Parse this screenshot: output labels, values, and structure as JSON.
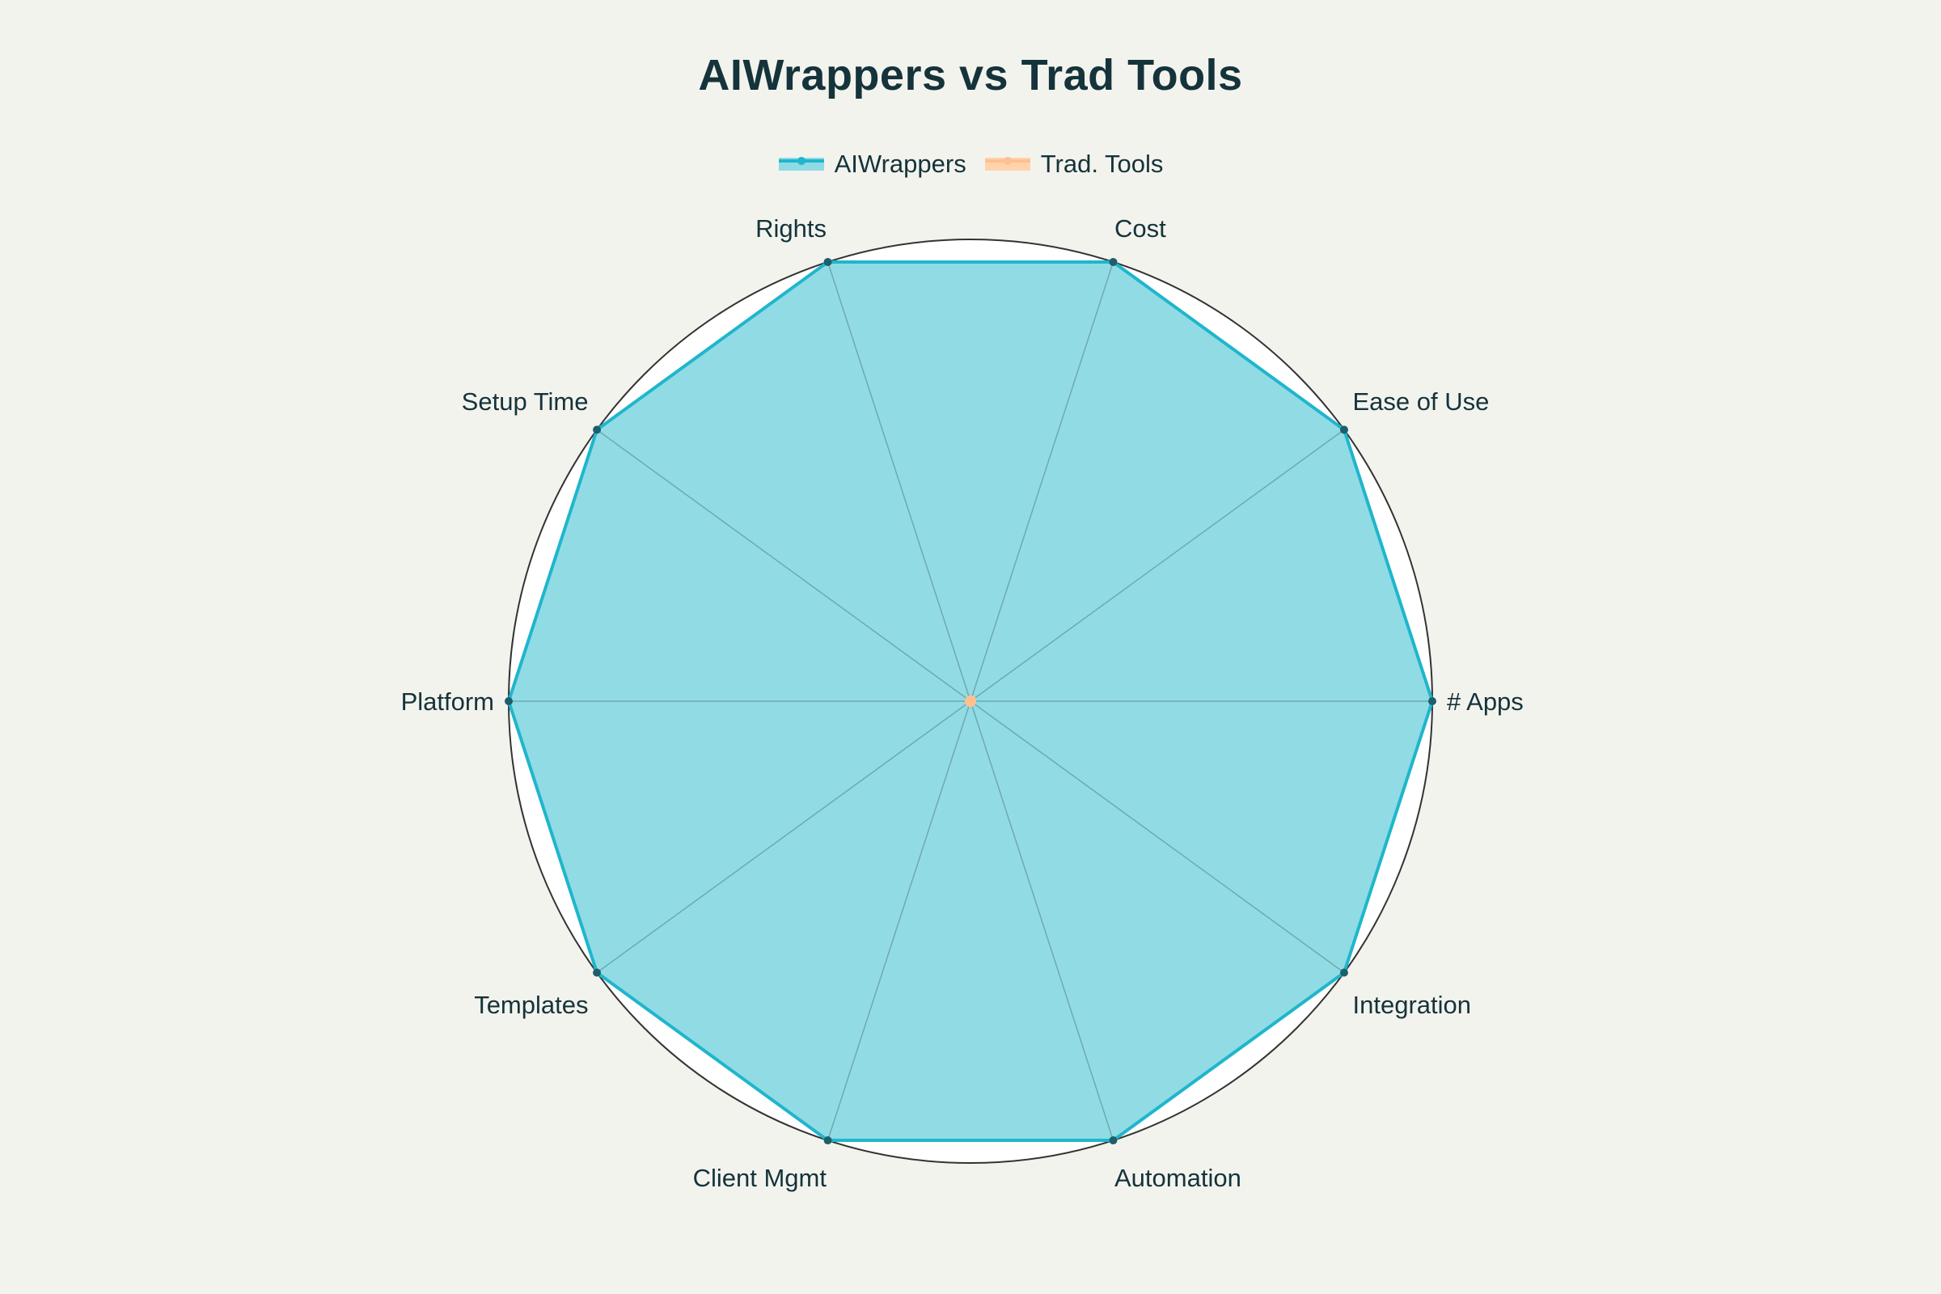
{
  "chart_data": {
    "type": "radar",
    "title": "AIWrappers vs Trad Tools",
    "categories": [
      "# Apps",
      "Ease of Use",
      "Cost",
      "Rights",
      "Setup Time",
      "Platform",
      "Templates",
      "Client Mgmt",
      "Automation",
      "Integration"
    ],
    "series": [
      {
        "name": "AIWrappers",
        "values": [
          1,
          1,
          1,
          1,
          1,
          1,
          1,
          1,
          1,
          1
        ],
        "color": "#1fb6cc",
        "fill": "#8fdae4"
      },
      {
        "name": "Trad. Tools",
        "values": [
          0,
          0,
          0,
          0,
          0,
          0,
          0,
          0,
          0,
          0
        ],
        "color": "#ffc08e",
        "fill": "#ffd3ad"
      }
    ],
    "rlim": [
      0,
      1
    ],
    "grid": false,
    "legend": "top-center",
    "colors": {
      "background": "#f3f3ed",
      "plot_background": "#ffffff",
      "text": "#15333b",
      "spoke": "#6fa9b1",
      "outline": "#333333",
      "marker": "#1d5f6b"
    }
  }
}
